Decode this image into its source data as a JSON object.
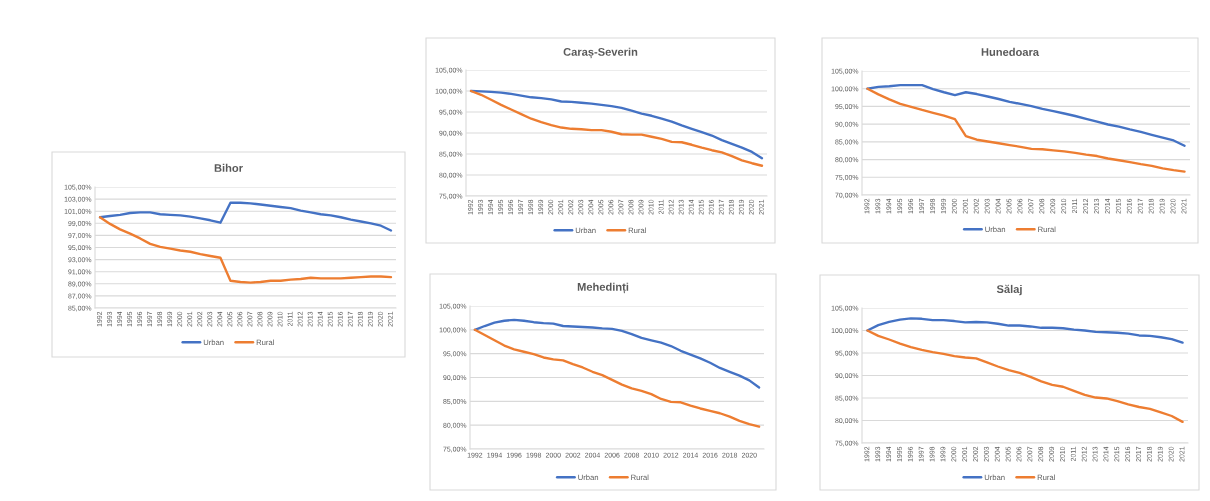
{
  "chart_data": [
    {
      "type": "line",
      "title": "Bihor",
      "categories": [
        "1992",
        "1993",
        "1994",
        "1995",
        "1996",
        "1997",
        "1998",
        "1999",
        "2000",
        "2001",
        "2002",
        "2003",
        "2004",
        "2005",
        "2006",
        "2007",
        "2008",
        "2009",
        "2010",
        "2011",
        "2012",
        "2013",
        "2014",
        "2015",
        "2016",
        "2017",
        "2018",
        "2019",
        "2020",
        "2021"
      ],
      "series": [
        {
          "name": "Urban",
          "color": "#4472c4",
          "values": [
            100.0,
            100.2,
            100.4,
            100.7,
            100.8,
            100.8,
            100.5,
            100.4,
            100.3,
            100.1,
            99.8,
            99.5,
            99.1,
            102.4,
            102.4,
            102.3,
            102.1,
            101.9,
            101.7,
            101.5,
            101.1,
            100.8,
            100.5,
            100.3,
            100.0,
            99.6,
            99.3,
            99.0,
            98.6,
            97.8
          ]
        },
        {
          "name": "Rural",
          "color": "#ed7d31",
          "values": [
            100.0,
            98.9,
            98.0,
            97.3,
            96.5,
            95.6,
            95.1,
            94.8,
            94.5,
            94.3,
            93.9,
            93.6,
            93.3,
            89.5,
            89.3,
            89.2,
            89.3,
            89.5,
            89.5,
            89.7,
            89.8,
            90.0,
            89.9,
            89.9,
            89.9,
            90.0,
            90.1,
            90.2,
            90.2,
            90.1
          ]
        }
      ],
      "ylim": [
        85,
        105
      ],
      "yticks": [
        {
          "value": 85,
          "label": "85,00%"
        },
        {
          "value": 87,
          "label": "87,00%"
        },
        {
          "value": 89,
          "label": "89,00%"
        },
        {
          "value": 91,
          "label": "91,00%"
        },
        {
          "value": 93,
          "label": "93,00%"
        },
        {
          "value": 95,
          "label": "95,00%"
        },
        {
          "value": 97,
          "label": "97,00%"
        },
        {
          "value": 99,
          "label": "99,00%"
        },
        {
          "value": 101,
          "label": "101,00%"
        },
        {
          "value": 103,
          "label": "103,00%"
        },
        {
          "value": 105,
          "label": "105,00%"
        }
      ],
      "grid": "y",
      "legend": "bottom"
    },
    {
      "type": "line",
      "title": "Caraș-Severin",
      "categories": [
        "1992",
        "1993",
        "1994",
        "1995",
        "1996",
        "1997",
        "1998",
        "1999",
        "2000",
        "2001",
        "2002",
        "2003",
        "2004",
        "2005",
        "2006",
        "2007",
        "2008",
        "2009",
        "2010",
        "2011",
        "2012",
        "2013",
        "2014",
        "2015",
        "2016",
        "2017",
        "2018",
        "2019",
        "2020",
        "2021"
      ],
      "series": [
        {
          "name": "Urban",
          "color": "#4472c4",
          "values": [
            100.0,
            99.9,
            99.8,
            99.6,
            99.3,
            98.9,
            98.5,
            98.3,
            98.0,
            97.5,
            97.4,
            97.2,
            97.0,
            96.7,
            96.4,
            96.0,
            95.3,
            94.6,
            94.1,
            93.4,
            92.7,
            91.8,
            91.0,
            90.2,
            89.4,
            88.3,
            87.4,
            86.5,
            85.5,
            84.0
          ]
        },
        {
          "name": "Rural",
          "color": "#ed7d31",
          "values": [
            100.0,
            99.1,
            97.9,
            96.7,
            95.6,
            94.5,
            93.4,
            92.6,
            91.9,
            91.3,
            91.0,
            90.9,
            90.7,
            90.7,
            90.3,
            89.7,
            89.6,
            89.6,
            89.1,
            88.6,
            87.9,
            87.8,
            87.2,
            86.5,
            85.9,
            85.4,
            84.5,
            83.5,
            82.8,
            82.2
          ]
        }
      ],
      "ylim": [
        75,
        105
      ],
      "yticks": [
        {
          "value": 75,
          "label": "75,00%"
        },
        {
          "value": 80,
          "label": "80,00%"
        },
        {
          "value": 85,
          "label": "85,00%"
        },
        {
          "value": 90,
          "label": "90,00%"
        },
        {
          "value": 95,
          "label": "95,00%"
        },
        {
          "value": 100,
          "label": "100,00%"
        },
        {
          "value": 105,
          "label": "105,00%"
        }
      ],
      "grid": "y",
      "legend": "bottom"
    },
    {
      "type": "line",
      "title": "Hunedoara",
      "categories": [
        "1992",
        "1993",
        "1994",
        "1995",
        "1996",
        "1997",
        "1998",
        "1999",
        "2000",
        "2001",
        "2002",
        "2003",
        "2004",
        "2005",
        "2006",
        "2007",
        "2008",
        "2009",
        "2010",
        "2011",
        "2012",
        "2013",
        "2014",
        "2015",
        "2016",
        "2017",
        "2018",
        "2019",
        "2020",
        "2021"
      ],
      "series": [
        {
          "name": "Urban",
          "color": "#4472c4",
          "values": [
            100.0,
            100.5,
            100.7,
            101.0,
            101.0,
            101.0,
            99.9,
            99.0,
            98.2,
            99.0,
            98.5,
            97.8,
            97.1,
            96.3,
            95.7,
            95.1,
            94.3,
            93.7,
            93.0,
            92.3,
            91.5,
            90.7,
            89.9,
            89.3,
            88.5,
            87.8,
            87.0,
            86.2,
            85.4,
            83.9
          ]
        },
        {
          "name": "Rural",
          "color": "#ed7d31",
          "values": [
            100.0,
            98.4,
            97.0,
            95.7,
            94.9,
            94.0,
            93.2,
            92.4,
            91.4,
            86.6,
            85.6,
            85.1,
            84.6,
            84.1,
            83.6,
            83.0,
            82.9,
            82.6,
            82.3,
            81.9,
            81.4,
            81.0,
            80.3,
            79.8,
            79.3,
            78.7,
            78.2,
            77.5,
            77.0,
            76.6
          ]
        }
      ],
      "ylim": [
        70,
        105
      ],
      "yticks": [
        {
          "value": 70,
          "label": "70,00%"
        },
        {
          "value": 75,
          "label": "75,00%"
        },
        {
          "value": 80,
          "label": "80,00%"
        },
        {
          "value": 85,
          "label": "85,00%"
        },
        {
          "value": 90,
          "label": "90,00%"
        },
        {
          "value": 95,
          "label": "95,00%"
        },
        {
          "value": 100,
          "label": "100,00%"
        },
        {
          "value": 105,
          "label": "105,00%"
        }
      ],
      "grid": "y",
      "legend": "bottom"
    },
    {
      "type": "line",
      "title": "Mehedinți",
      "categories": [
        "1992",
        null,
        "1994",
        null,
        "1996",
        null,
        "1998",
        null,
        "2000",
        null,
        "2002",
        null,
        "2004",
        null,
        "2006",
        null,
        "2008",
        null,
        "2010",
        null,
        "2012",
        null,
        "2014",
        null,
        "2016",
        null,
        "2018",
        null,
        "2020",
        null
      ],
      "series": [
        {
          "name": "Urban",
          "color": "#4472c4",
          "values": [
            100.0,
            100.8,
            101.5,
            101.9,
            102.1,
            101.9,
            101.6,
            101.4,
            101.3,
            100.8,
            100.7,
            100.6,
            100.5,
            100.3,
            100.2,
            99.8,
            99.1,
            98.3,
            97.8,
            97.3,
            96.6,
            95.6,
            94.8,
            94.0,
            93.1,
            92.0,
            91.2,
            90.4,
            89.4,
            87.9
          ]
        },
        {
          "name": "Rural",
          "color": "#ed7d31",
          "values": [
            100.0,
            98.9,
            97.8,
            96.7,
            95.9,
            95.4,
            94.9,
            94.2,
            93.8,
            93.6,
            92.8,
            92.1,
            91.2,
            90.5,
            89.5,
            88.5,
            87.7,
            87.2,
            86.5,
            85.5,
            84.9,
            84.8,
            84.1,
            83.5,
            83.0,
            82.5,
            81.8,
            80.9,
            80.2,
            79.7
          ]
        }
      ],
      "ylim": [
        75,
        105
      ],
      "yticks": [
        {
          "value": 75,
          "label": "75,00%"
        },
        {
          "value": 80,
          "label": "80,00%"
        },
        {
          "value": 85,
          "label": "85,00%"
        },
        {
          "value": 90,
          "label": "90,00%"
        },
        {
          "value": 95,
          "label": "95,00%"
        },
        {
          "value": 100,
          "label": "100,00%"
        },
        {
          "value": 105,
          "label": "105,00%"
        }
      ],
      "grid": "y",
      "legend": "bottom"
    },
    {
      "type": "line",
      "title": "Sălaj",
      "categories": [
        "1992",
        "1993",
        "1994",
        "1995",
        "1996",
        "1997",
        "1998",
        "1999",
        "2000",
        "2001",
        "2002",
        "2003",
        "2004",
        "2005",
        "2006",
        "2007",
        "2008",
        "2009",
        "2010",
        "2011",
        "2012",
        "2013",
        "2014",
        "2015",
        "2016",
        "2017",
        "2018",
        "2019",
        "2020",
        "2021"
      ],
      "series": [
        {
          "name": "Urban",
          "color": "#4472c4",
          "values": [
            100.0,
            101.2,
            101.9,
            102.4,
            102.7,
            102.6,
            102.3,
            102.3,
            102.1,
            101.8,
            101.9,
            101.8,
            101.5,
            101.1,
            101.1,
            100.9,
            100.6,
            100.6,
            100.5,
            100.2,
            100.0,
            99.7,
            99.6,
            99.5,
            99.3,
            98.9,
            98.8,
            98.5,
            98.1,
            97.3
          ]
        },
        {
          "name": "Rural",
          "color": "#ed7d31",
          "values": [
            100.0,
            98.8,
            98.0,
            97.1,
            96.3,
            95.7,
            95.2,
            94.8,
            94.3,
            94.0,
            93.8,
            92.9,
            92.0,
            91.2,
            90.6,
            89.7,
            88.7,
            87.9,
            87.5,
            86.6,
            85.7,
            85.1,
            84.9,
            84.3,
            83.6,
            83.0,
            82.6,
            81.8,
            81.0,
            79.7
          ]
        }
      ],
      "ylim": [
        75,
        105
      ],
      "yticks": [
        {
          "value": 75,
          "label": "75,00%"
        },
        {
          "value": 80,
          "label": "80,00%"
        },
        {
          "value": 85,
          "label": "85,00%"
        },
        {
          "value": 90,
          "label": "90,00%"
        },
        {
          "value": 95,
          "label": "95,00%"
        },
        {
          "value": 100,
          "label": "100,00%"
        },
        {
          "value": 105,
          "label": "105,00%"
        }
      ],
      "grid": "y",
      "legend": "bottom"
    }
  ]
}
